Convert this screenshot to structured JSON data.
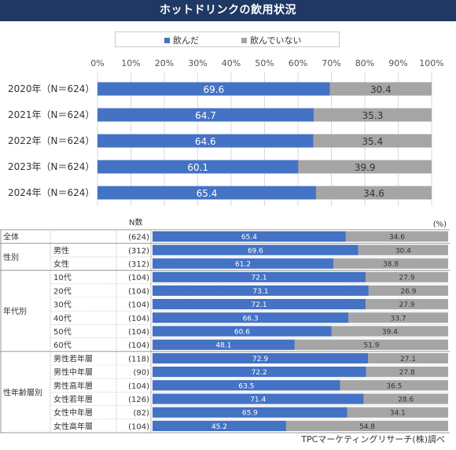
{
  "title": "ホットドリンクの飲用状況",
  "legend": [
    {
      "label": "飲んだ",
      "color": "#4472c4"
    },
    {
      "label": "飲んでいない",
      "color": "#a5a5a5"
    }
  ],
  "colors": {
    "drank": "#4472c4",
    "not": "#a5a5a5",
    "header": "#1f3864"
  },
  "source": "TPCマーケティングリサーチ(株)調べ",
  "table_headers": {
    "n": "N数",
    "unit": "(%)"
  },
  "chart_data": [
    {
      "type": "bar",
      "orientation": "horizontal",
      "stacked": true,
      "title": "ホットドリンクの飲用状況",
      "xlim": [
        0,
        100
      ],
      "x_ticks": [
        "0%",
        "10%",
        "20%",
        "30%",
        "40%",
        "50%",
        "60%",
        "70%",
        "80%",
        "90%",
        "100%"
      ],
      "categories": [
        "2020年（N＝624）",
        "2021年（N＝624）",
        "2022年（N＝624）",
        "2023年（N＝624）",
        "2024年（N＝624）"
      ],
      "series": [
        {
          "name": "飲んだ",
          "values": [
            69.6,
            64.7,
            64.6,
            60.1,
            65.4
          ]
        },
        {
          "name": "飲んでいない",
          "values": [
            30.4,
            35.3,
            35.4,
            39.9,
            34.6
          ]
        }
      ],
      "legend_position": "top"
    },
    {
      "type": "bar",
      "orientation": "horizontal",
      "stacked": true,
      "unit": "(%)",
      "rows": [
        {
          "group": "全体",
          "label": "",
          "n": "(624)",
          "values": [
            65.4,
            34.6
          ]
        },
        {
          "group": "性別",
          "label": "男性",
          "n": "(312)",
          "values": [
            69.6,
            30.4
          ]
        },
        {
          "group": "性別",
          "label": "女性",
          "n": "(312)",
          "values": [
            61.2,
            38.8
          ]
        },
        {
          "group": "年代別",
          "label": "10代",
          "n": "(104)",
          "values": [
            72.1,
            27.9
          ]
        },
        {
          "group": "年代別",
          "label": "20代",
          "n": "(104)",
          "values": [
            73.1,
            26.9
          ]
        },
        {
          "group": "年代別",
          "label": "30代",
          "n": "(104)",
          "values": [
            72.1,
            27.9
          ]
        },
        {
          "group": "年代別",
          "label": "40代",
          "n": "(104)",
          "values": [
            66.3,
            33.7
          ]
        },
        {
          "group": "年代別",
          "label": "50代",
          "n": "(104)",
          "values": [
            60.6,
            39.4
          ]
        },
        {
          "group": "年代別",
          "label": "60代",
          "n": "(104)",
          "values": [
            48.1,
            51.9
          ]
        },
        {
          "group": "性年齢層別",
          "label": "男性若年層",
          "n": "(118)",
          "values": [
            72.9,
            27.1
          ]
        },
        {
          "group": "性年齢層別",
          "label": "男性中年層",
          "n": "(90)",
          "values": [
            72.2,
            27.8
          ]
        },
        {
          "group": "性年齢層別",
          "label": "男性高年層",
          "n": "(104)",
          "values": [
            63.5,
            36.5
          ]
        },
        {
          "group": "性年齢層別",
          "label": "女性若年層",
          "n": "(126)",
          "values": [
            71.4,
            28.6
          ]
        },
        {
          "group": "性年齢層別",
          "label": "女性中年層",
          "n": "(82)",
          "values": [
            65.9,
            34.1
          ]
        },
        {
          "group": "性年齢層別",
          "label": "女性高年層",
          "n": "(104)",
          "values": [
            45.2,
            54.8
          ]
        }
      ],
      "series_names": [
        "飲んだ",
        "飲んでいない"
      ]
    }
  ]
}
